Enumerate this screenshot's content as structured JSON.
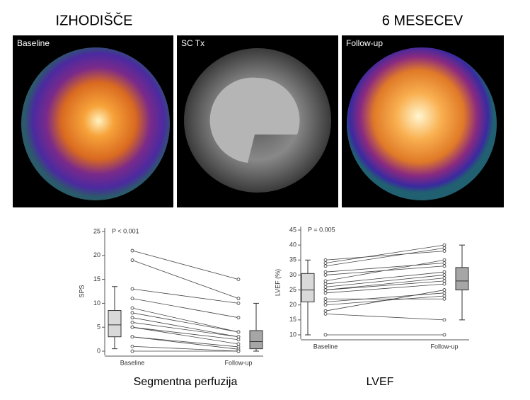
{
  "figure": {
    "headings": [
      "IZHODIŠČE",
      "6 MESECEV"
    ],
    "panels": [
      "Baseline",
      "SC Tx",
      "Follow-up"
    ]
  },
  "chart_data": [
    {
      "type": "box",
      "caption": "Segmentna perfuzija",
      "ylabel": "SPS",
      "annotation": "P < 0.001",
      "categories": [
        "Baseline",
        "Follow-up"
      ],
      "ylim": [
        0,
        25
      ],
      "yticks": [
        0,
        5,
        10,
        15,
        20,
        25
      ],
      "boxes": [
        {
          "min": 0.5,
          "q1": 3,
          "median": 5.5,
          "q3": 8.5,
          "max": 13.5,
          "color": "#d9d9d9"
        },
        {
          "min": 0,
          "q1": 0.5,
          "median": 2,
          "q3": 4.3,
          "max": 10,
          "color": "#a6a6a6"
        }
      ],
      "points": [
        [
          21,
          19,
          13,
          11,
          9,
          8,
          7,
          6,
          5,
          5,
          3,
          3,
          1,
          0
        ],
        [
          15,
          11,
          10,
          7,
          4,
          4,
          3,
          3,
          2.4,
          1.5,
          0.9,
          0.4,
          0,
          0
        ]
      ]
    },
    {
      "type": "box",
      "caption": "LVEF",
      "ylabel": "LVEF (%)",
      "annotation": "P = 0.005",
      "categories": [
        "Baseline",
        "Follow-up"
      ],
      "ylim": [
        10,
        45
      ],
      "yticks": [
        10,
        15,
        20,
        25,
        30,
        35,
        40,
        45
      ],
      "boxes": [
        {
          "min": 10,
          "q1": 21,
          "median": 25,
          "q3": 30.5,
          "max": 35,
          "color": "#d9d9d9"
        },
        {
          "min": 15,
          "q1": 25,
          "median": 28,
          "q3": 32.5,
          "max": 40,
          "color": "#a6a6a6"
        }
      ],
      "points": [
        [
          35,
          34,
          33,
          31,
          30,
          28,
          27,
          26,
          25,
          25,
          24,
          22,
          21,
          20,
          18,
          17,
          10
        ],
        [
          38,
          40,
          39,
          34,
          33,
          35,
          31,
          30,
          29,
          28,
          27,
          22,
          24,
          23,
          25,
          15,
          10
        ]
      ]
    }
  ]
}
